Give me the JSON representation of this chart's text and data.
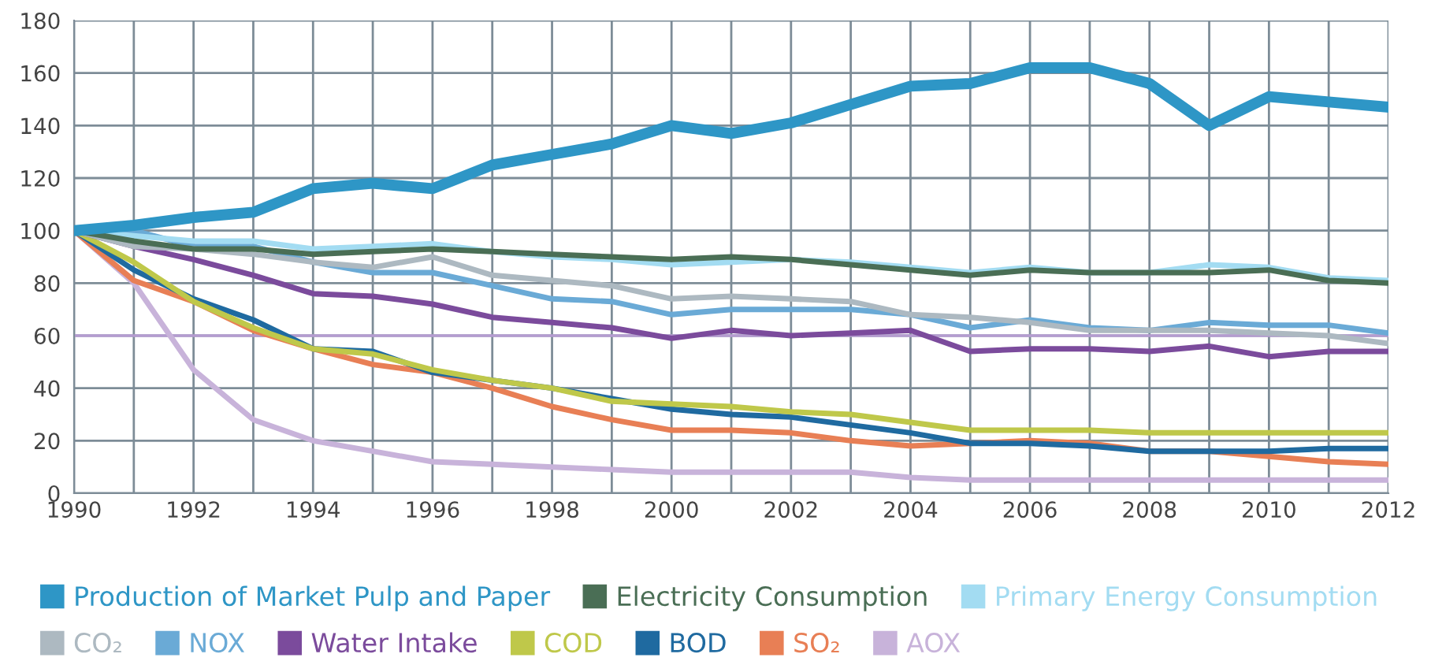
{
  "chart_data": {
    "type": "line",
    "x": [
      1990,
      1991,
      1992,
      1993,
      1994,
      1995,
      1996,
      1997,
      1998,
      1999,
      2000,
      2001,
      2002,
      2003,
      2004,
      2005,
      2006,
      2007,
      2008,
      2009,
      2010,
      2011,
      2012
    ],
    "series": [
      {
        "name": "Production of Market Pulp and Paper",
        "color": "#2e96c6",
        "values": [
          100,
          102,
          105,
          107,
          116,
          118,
          116,
          125,
          129,
          133,
          140,
          137,
          141,
          148,
          155,
          156,
          162,
          162,
          156,
          140,
          151,
          149,
          147
        ]
      },
      {
        "name": "Electricity Consumption",
        "color": "#4a6e55",
        "values": [
          100,
          96,
          93,
          93,
          91,
          92,
          93,
          92,
          91,
          90,
          89,
          90,
          89,
          87,
          85,
          83,
          85,
          84,
          84,
          84,
          85,
          81,
          80
        ]
      },
      {
        "name": "Primary Energy Consumption",
        "color": "#a3dcf2",
        "values": [
          100,
          98,
          96,
          96,
          93,
          94,
          95,
          92,
          90,
          89,
          87,
          88,
          89,
          88,
          86,
          84,
          86,
          84,
          84,
          87,
          86,
          82,
          81
        ]
      },
      {
        "name": "CO₂",
        "color": "#adb9c1",
        "values": [
          100,
          94,
          93,
          91,
          88,
          86,
          90,
          83,
          81,
          79,
          74,
          75,
          74,
          73,
          68,
          67,
          65,
          62,
          62,
          62,
          61,
          60,
          57
        ]
      },
      {
        "name": "NOX",
        "color": "#6aaad6",
        "values": [
          100,
          100,
          94,
          94,
          88,
          84,
          84,
          79,
          74,
          73,
          68,
          70,
          70,
          70,
          68,
          63,
          66,
          63,
          62,
          65,
          64,
          64,
          61
        ]
      },
      {
        "name": "Water Intake",
        "color": "#7b4b9c",
        "values": [
          100,
          94,
          89,
          83,
          76,
          75,
          72,
          67,
          65,
          63,
          59,
          62,
          60,
          61,
          62,
          54,
          55,
          55,
          54,
          56,
          52,
          54,
          54
        ]
      },
      {
        "name": "COD",
        "color": "#bfc84a",
        "values": [
          100,
          88,
          73,
          63,
          55,
          53,
          47,
          43,
          40,
          35,
          34,
          33,
          31,
          30,
          27,
          24,
          24,
          24,
          23,
          23,
          23,
          23,
          23
        ]
      },
      {
        "name": "BOD",
        "color": "#1f6aa0",
        "values": [
          100,
          85,
          74,
          66,
          55,
          54,
          46,
          43,
          40,
          36,
          32,
          30,
          29,
          26,
          23,
          19,
          19,
          18,
          16,
          16,
          16,
          17,
          17
        ]
      },
      {
        "name": "SO₂",
        "color": "#e87f55",
        "values": [
          100,
          81,
          73,
          62,
          55,
          49,
          46,
          40,
          33,
          28,
          24,
          24,
          23,
          20,
          18,
          19,
          20,
          19,
          16,
          16,
          14,
          12,
          11
        ]
      },
      {
        "name": "AOX",
        "color": "#c8b3da",
        "values": [
          100,
          80,
          47,
          28,
          20,
          16,
          12,
          11,
          10,
          9,
          8,
          8,
          8,
          8,
          6,
          5,
          5,
          5,
          5,
          5,
          5,
          5,
          5
        ]
      }
    ],
    "xlim": [
      1990,
      2012
    ],
    "xticks": [
      1990,
      {
        "value": 1991,
        "label": null
      },
      1992,
      {
        "value": 1993,
        "label": null
      },
      1994,
      {
        "value": 1995,
        "label": null
      },
      1996,
      {
        "value": 1997,
        "label": null
      },
      1998,
      {
        "value": 1999,
        "label": null
      },
      2000,
      {
        "value": 2001,
        "label": null
      },
      2002,
      {
        "value": 2003,
        "label": null
      },
      2004,
      {
        "value": 2005,
        "label": null
      },
      2006,
      {
        "value": 2007,
        "label": null
      },
      2008,
      {
        "value": 2009,
        "label": null
      },
      2010,
      {
        "value": 2011,
        "label": null
      },
      2012
    ],
    "ylim": [
      0,
      180
    ],
    "yticks": [
      0,
      20,
      40,
      60,
      80,
      100,
      120,
      140,
      160,
      180
    ],
    "ref_lines": [
      {
        "axis": "y",
        "value": 60,
        "color": "#b59cd0"
      }
    ],
    "grid": true,
    "legend": "bottom",
    "marker": "none",
    "line_style": "solid"
  }
}
